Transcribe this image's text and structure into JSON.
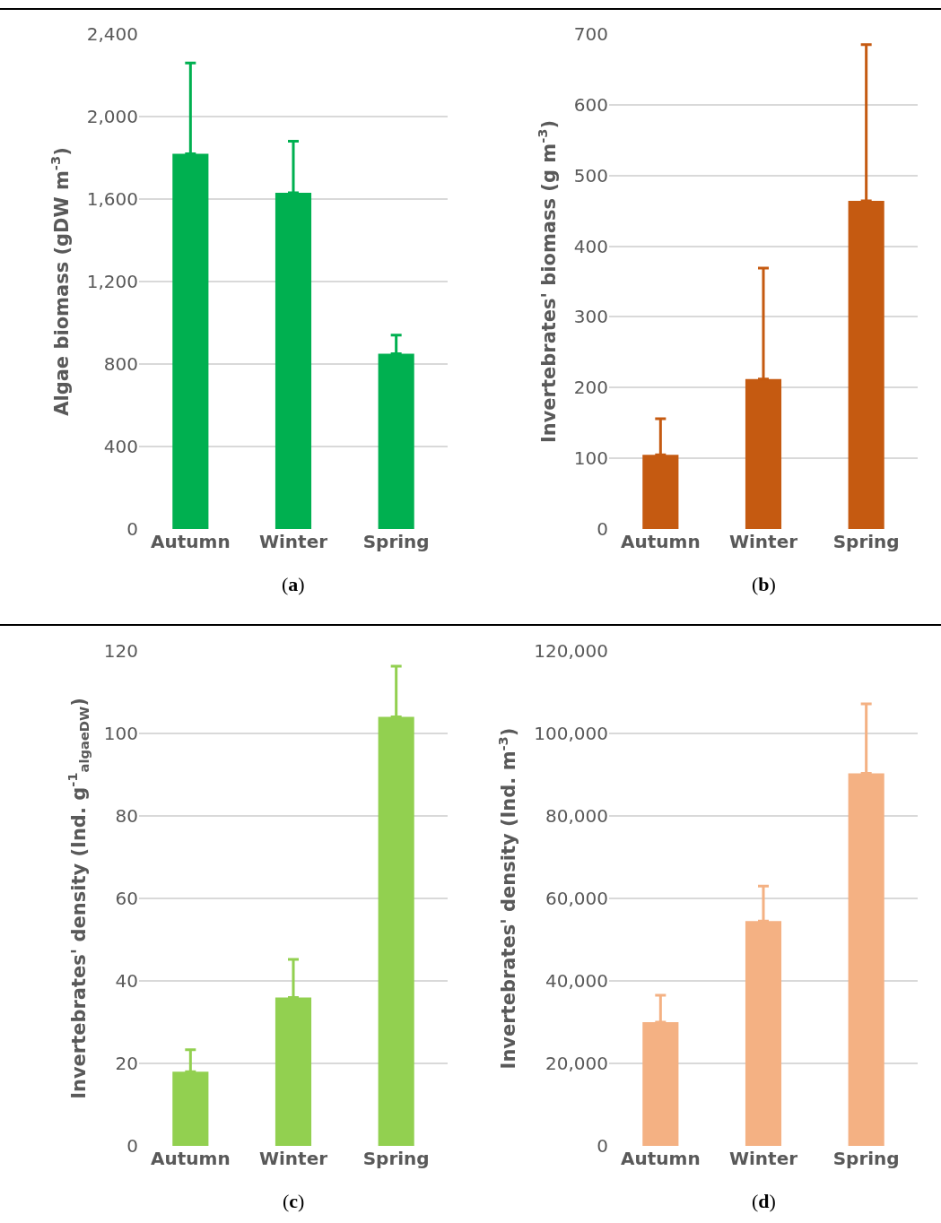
{
  "chart_data": [
    {
      "type": "bar",
      "categories": [
        "Autumn",
        "Winter",
        "Spring"
      ],
      "values": [
        1820,
        1630,
        850
      ],
      "errors": [
        [
          1820,
          2260
        ],
        [
          1630,
          1880
        ],
        [
          850,
          940
        ]
      ],
      "color": "#00b050",
      "ylabel": "Algae biomass (gDW m$^{-3}$)",
      "ylim": [
        0,
        2400
      ],
      "yticks": [
        0,
        400,
        800,
        {
          "value": 1200,
          "label": "1,200"
        },
        {
          "value": 1600,
          "label": "1,600"
        },
        {
          "value": 2000,
          "label": "2,000"
        },
        {
          "value": 2400,
          "label": "2,400"
        }
      ],
      "grid": "y",
      "annotations": [
        "(a)"
      ]
    },
    {
      "type": "bar",
      "categories": [
        "Autumn",
        "Winter",
        "Spring"
      ],
      "values": [
        105,
        212,
        464
      ],
      "errors": [
        [
          105,
          156
        ],
        [
          212,
          369
        ],
        [
          464,
          685
        ]
      ],
      "color": "#c55a11",
      "ylabel": "Invertebrates' biomass (g m$^{-3}$)",
      "ylim": [
        0,
        700
      ],
      "yticks": [
        0,
        100,
        200,
        300,
        400,
        500,
        600,
        700
      ],
      "grid": "y",
      "annotations": [
        "(b)"
      ]
    },
    {
      "type": "bar",
      "categories": [
        "Autumn",
        "Winter",
        "Spring"
      ],
      "values": [
        18,
        36,
        104
      ],
      "errors": [
        [
          18,
          23.3
        ],
        [
          36,
          45.2
        ],
        [
          104,
          116.3
        ]
      ],
      "color": "#92d050",
      "ylabel": "Invertebrates' density (Ind. g$^{-1}$$_{algaeDW}$)",
      "ylim": [
        0,
        120
      ],
      "yticks": [
        0,
        20,
        40,
        60,
        80,
        100,
        120
      ],
      "grid": "y",
      "annotations": [
        "(c)"
      ]
    },
    {
      "type": "bar",
      "categories": [
        "Autumn",
        "Winter",
        "Spring"
      ],
      "values": [
        30000,
        54500,
        90300
      ],
      "errors": [
        [
          30000,
          36500
        ],
        [
          54500,
          63000
        ],
        [
          90300,
          107200
        ]
      ],
      "color": "#f4b183",
      "ylabel": "Invertebrates' density (Ind. m$^{-3}$)",
      "ylim": [
        0,
        120000
      ],
      "yticks": [
        0,
        {
          "value": 20000,
          "label": "20,000"
        },
        {
          "value": 40000,
          "label": "40,000"
        },
        {
          "value": 60000,
          "label": "60,000"
        },
        {
          "value": 80000,
          "label": "80,000"
        },
        {
          "value": 100000,
          "label": "100,000"
        },
        {
          "value": 120000,
          "label": "120,000"
        }
      ],
      "grid": "y",
      "annotations": [
        "(d)"
      ]
    }
  ]
}
